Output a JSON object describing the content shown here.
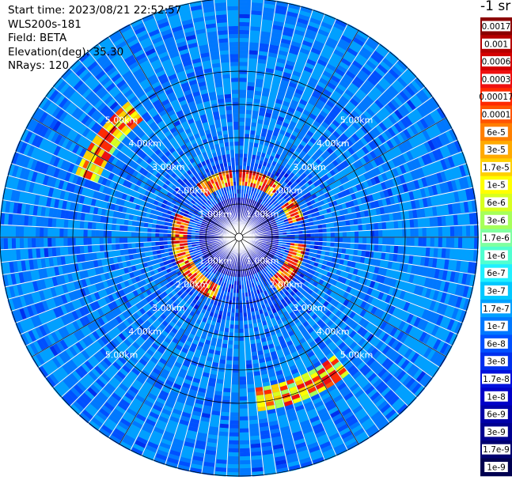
{
  "header": {
    "start_time_label": "Start time:",
    "start_time_value": "2023/08/21 22:52:57",
    "instrument": "WLS200s-181",
    "field_label": "Field:",
    "field_value": "BETA",
    "elevation_label": "Elevation(deg):",
    "elevation_value": "35.30",
    "nrays_label": "NRays:",
    "nrays_value": "120"
  },
  "colorbar": {
    "unit": "-1 sr",
    "labels": [
      "0.0017",
      "0.001",
      "0.0006",
      "0.0003",
      "0.00017",
      "0.0001",
      "6e-5",
      "3e-5",
      "1.7e-5",
      "1e-5",
      "6e-6",
      "3e-6",
      "1.7e-6",
      "1e-6",
      "6e-7",
      "3e-7",
      "1.7e-7",
      "1e-7",
      "6e-8",
      "3e-8",
      "1.7e-8",
      "1e-8",
      "6e-9",
      "3e-9",
      "1.7e-9",
      "1e-9"
    ],
    "colors": [
      "#8b0000",
      "#b50000",
      "#d40000",
      "#ee1010",
      "#ff2a00",
      "#ff5500",
      "#ff7f00",
      "#ffaa00",
      "#ffd000",
      "#ffff00",
      "#d8ff20",
      "#a6ff5a",
      "#7fffa0",
      "#50ffd0",
      "#20f0ff",
      "#00c8ff",
      "#00a0ff",
      "#0078ff",
      "#0050ff",
      "#0030ee",
      "#0010dd",
      "#0000c8",
      "#0000a8",
      "#000090",
      "#000070",
      "#000050"
    ]
  },
  "chart_data": {
    "type": "heatmap",
    "projection": "polar PPI",
    "field": "BETA",
    "n_rays": 120,
    "range_rings_km": [
      1,
      2,
      3,
      4,
      5
    ],
    "ring_labels": [
      "1.00km",
      "2.00km",
      "3.00km",
      "4.00km",
      "5.00km"
    ],
    "max_range_km": 7.2,
    "color_scale": "log",
    "value_range": [
      1e-09,
      0.0017
    ],
    "features": [
      {
        "description_range_km": [
          1.5,
          2.0
        ],
        "value": 0.0003
      },
      {
        "description_range_km": [
          4.5,
          5.0
        ],
        "value": 1e-05
      }
    ]
  }
}
